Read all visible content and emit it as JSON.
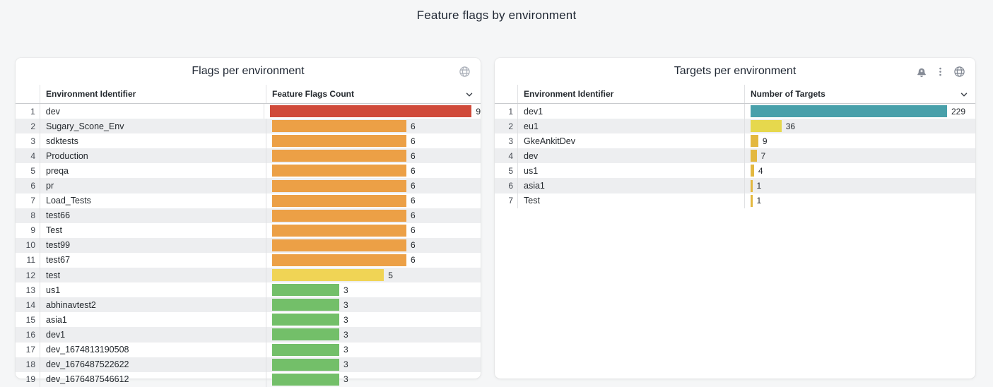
{
  "page": {
    "title": "Feature flags by environment",
    "background": "#f5f6f7"
  },
  "chart_data": [
    {
      "type": "bar",
      "orientation": "horizontal",
      "title": "Flags per environment",
      "categories": [
        "dev",
        "Sugary_Scone_Env",
        "sdktests",
        "Production",
        "preqa",
        "pr",
        "Load_Tests",
        "test66",
        "Test",
        "test99",
        "test67",
        "test",
        "us1",
        "abhinavtest2",
        "asia1",
        "dev1",
        "dev_1674813190508",
        "dev_1676487522622",
        "dev_1676487546612"
      ],
      "values": [
        9,
        6,
        6,
        6,
        6,
        6,
        6,
        6,
        6,
        6,
        6,
        5,
        3,
        3,
        3,
        3,
        3,
        3,
        3
      ],
      "xlabel": "Feature Flags Count",
      "ylabel": "Environment Identifier",
      "xlim": [
        0,
        9
      ],
      "legend": false,
      "grid": false
    },
    {
      "type": "bar",
      "orientation": "horizontal",
      "title": "Targets per environment",
      "categories": [
        "dev1",
        "eu1",
        "GkeAnkitDev",
        "dev",
        "us1",
        "asia1",
        "Test"
      ],
      "values": [
        229,
        36,
        9,
        7,
        4,
        1,
        1
      ],
      "xlabel": "Number of Targets",
      "ylabel": "Environment Identifier",
      "xlim": [
        0,
        229
      ],
      "legend": false,
      "grid": false
    }
  ],
  "panels": [
    {
      "title": "Flags per environment",
      "header_icons": [
        "globe-icon"
      ],
      "columns": {
        "identifier": "Environment Identifier",
        "value": "Feature Flags Count"
      },
      "sort_icon": "chevron-down-icon",
      "scale_max": 9,
      "rows": [
        {
          "n": 1,
          "name": "dev",
          "value": 9,
          "color": "#d04a3a"
        },
        {
          "n": 2,
          "name": "Sugary_Scone_Env",
          "value": 6,
          "color": "#eca046"
        },
        {
          "n": 3,
          "name": "sdktests",
          "value": 6,
          "color": "#eca046"
        },
        {
          "n": 4,
          "name": "Production",
          "value": 6,
          "color": "#eca046"
        },
        {
          "n": 5,
          "name": "preqa",
          "value": 6,
          "color": "#eca046"
        },
        {
          "n": 6,
          "name": "pr",
          "value": 6,
          "color": "#eca046"
        },
        {
          "n": 7,
          "name": "Load_Tests",
          "value": 6,
          "color": "#eca046"
        },
        {
          "n": 8,
          "name": "test66",
          "value": 6,
          "color": "#eca046"
        },
        {
          "n": 9,
          "name": "Test",
          "value": 6,
          "color": "#eca046"
        },
        {
          "n": 10,
          "name": "test99",
          "value": 6,
          "color": "#eca046"
        },
        {
          "n": 11,
          "name": "test67",
          "value": 6,
          "color": "#eca046"
        },
        {
          "n": 12,
          "name": "test",
          "value": 5,
          "color": "#f0d455"
        },
        {
          "n": 13,
          "name": "us1",
          "value": 3,
          "color": "#73bf69"
        },
        {
          "n": 14,
          "name": "abhinavtest2",
          "value": 3,
          "color": "#73bf69"
        },
        {
          "n": 15,
          "name": "asia1",
          "value": 3,
          "color": "#73bf69"
        },
        {
          "n": 16,
          "name": "dev1",
          "value": 3,
          "color": "#73bf69"
        },
        {
          "n": 17,
          "name": "dev_1674813190508",
          "value": 3,
          "color": "#73bf69"
        },
        {
          "n": 18,
          "name": "dev_1676487522622",
          "value": 3,
          "color": "#73bf69"
        },
        {
          "n": 19,
          "name": "dev_1676487546612",
          "value": 3,
          "color": "#73bf69"
        }
      ]
    },
    {
      "title": "Targets per environment",
      "header_icons": [
        "alert-bell-plus-icon",
        "kebab-menu-icon",
        "globe-icon"
      ],
      "columns": {
        "identifier": "Environment Identifier",
        "value": "Number of Targets"
      },
      "sort_icon": "chevron-down-icon",
      "scale_max": 229,
      "rows": [
        {
          "n": 1,
          "name": "dev1",
          "value": 229,
          "color": "#48a0aa"
        },
        {
          "n": 2,
          "name": "eu1",
          "value": 36,
          "color": "#e6d84d"
        },
        {
          "n": 3,
          "name": "GkeAnkitDev",
          "value": 9,
          "color": "#e3b840"
        },
        {
          "n": 4,
          "name": "dev",
          "value": 7,
          "color": "#e3b840"
        },
        {
          "n": 5,
          "name": "us1",
          "value": 4,
          "color": "#e3b840"
        },
        {
          "n": 6,
          "name": "asia1",
          "value": 1,
          "color": "#e3b840"
        },
        {
          "n": 7,
          "name": "Test",
          "value": 1,
          "color": "#e3b840"
        }
      ]
    }
  ]
}
